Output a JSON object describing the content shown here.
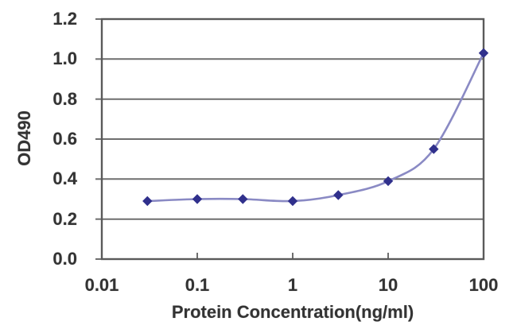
{
  "chart_data": {
    "type": "line",
    "xlabel": "Protein Concentration(ng/ml)",
    "ylabel": "OD490",
    "x_scale": "log",
    "x": [
      0.03,
      0.1,
      0.3,
      1,
      3,
      10,
      30,
      100
    ],
    "values": [
      0.29,
      0.3,
      0.3,
      0.29,
      0.32,
      0.39,
      0.55,
      1.03
    ],
    "xlim": [
      0.01,
      100
    ],
    "ylim": [
      0.0,
      1.2
    ],
    "x_ticks": [
      "0.01",
      "0.1",
      "1",
      "10",
      "100"
    ],
    "y_ticks": [
      "0.0",
      "0.2",
      "0.4",
      "0.6",
      "0.8",
      "1.0",
      "1.2"
    ],
    "grid": "horizontal-major",
    "legend": "none",
    "marker": "diamond",
    "line_smoothing": "smoothed",
    "colors": {
      "line": "#8A8AC4",
      "marker": "#30308C",
      "gridline": "#6E6E6E",
      "frame": "#5A5A5A",
      "text": "#333333",
      "background": "#FFFFFF"
    }
  }
}
